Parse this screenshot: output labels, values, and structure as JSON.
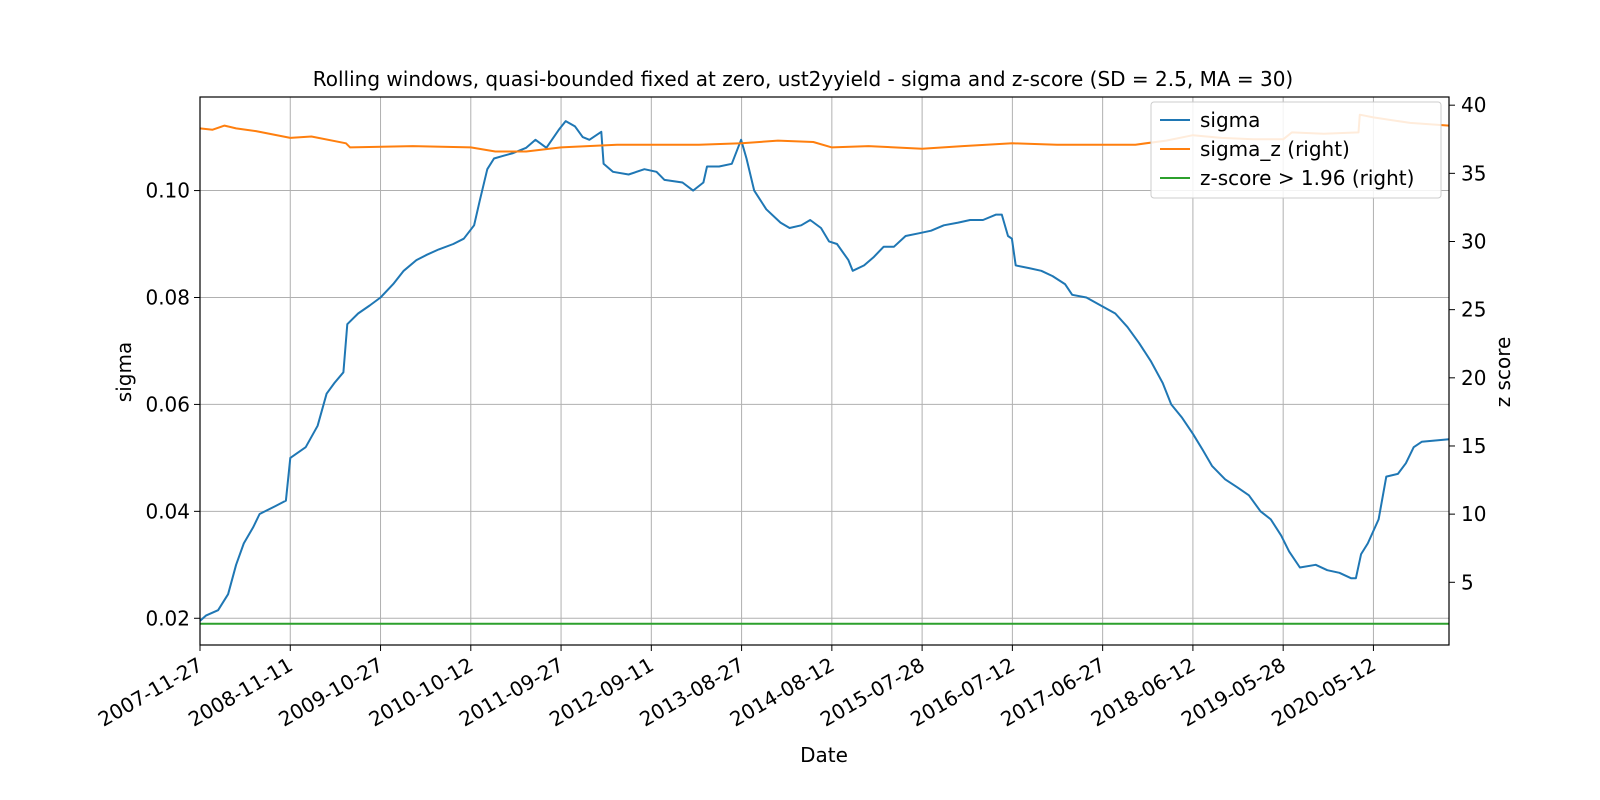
{
  "chart_data": {
    "type": "line",
    "title": "Rolling windows, quasi-bounded fixed at zero, ust2yyield - sigma and z-score (SD = 2.5, MA = 30)",
    "xlabel": "Date",
    "ylabel": "sigma",
    "ylabel_right": "z score",
    "x_range": [
      "2007-11-27",
      "2021-03-01"
    ],
    "ylim": [
      0.015,
      0.1175
    ],
    "ylim_right": [
      0.4,
      40.6
    ],
    "x_ticks": [
      "2007-11-27",
      "2008-11-11",
      "2009-10-27",
      "2010-10-12",
      "2011-09-27",
      "2012-09-11",
      "2013-08-27",
      "2014-08-12",
      "2015-07-28",
      "2016-07-12",
      "2017-06-27",
      "2018-06-12",
      "2019-05-28",
      "2020-05-12"
    ],
    "y_ticks": [
      "0.02",
      "0.04",
      "0.06",
      "0.08",
      "0.10"
    ],
    "y_ticks_right": [
      "5",
      "10",
      "15",
      "20",
      "25",
      "30",
      "35",
      "40"
    ],
    "grid": true,
    "legend_position": "top-right",
    "colors": {
      "sigma": "#1f77b4",
      "sigma_z": "#ff7f0e",
      "threshold": "#2ca02c"
    },
    "series": [
      {
        "name": "sigma",
        "axis": "left",
        "points": [
          [
            "2007-11-27",
            0.0195
          ],
          [
            "2007-12-20",
            0.0205
          ],
          [
            "2008-02-05",
            0.0215
          ],
          [
            "2008-03-15",
            0.0245
          ],
          [
            "2008-04-15",
            0.03
          ],
          [
            "2008-05-15",
            0.034
          ],
          [
            "2008-06-20",
            0.037
          ],
          [
            "2008-07-15",
            0.0395
          ],
          [
            "2008-09-15",
            0.041
          ],
          [
            "2008-10-25",
            0.042
          ],
          [
            "2008-11-11",
            0.05
          ],
          [
            "2009-01-10",
            0.052
          ],
          [
            "2009-02-25",
            0.056
          ],
          [
            "2009-04-01",
            0.062
          ],
          [
            "2009-05-01",
            0.064
          ],
          [
            "2009-06-05",
            0.066
          ],
          [
            "2009-06-20",
            0.075
          ],
          [
            "2009-08-01",
            0.077
          ],
          [
            "2009-09-15",
            0.0785
          ],
          [
            "2009-10-27",
            0.08
          ],
          [
            "2009-12-15",
            0.0825
          ],
          [
            "2010-01-25",
            0.085
          ],
          [
            "2010-03-15",
            0.087
          ],
          [
            "2010-04-25",
            0.088
          ],
          [
            "2010-06-10",
            0.089
          ],
          [
            "2010-08-05",
            0.09
          ],
          [
            "2010-09-15",
            0.091
          ],
          [
            "2010-10-25",
            0.0935
          ],
          [
            "2010-11-15",
            0.098
          ],
          [
            "2010-12-15",
            0.104
          ],
          [
            "2011-01-10",
            0.106
          ],
          [
            "2011-02-15",
            0.1065
          ],
          [
            "2011-03-25",
            0.107
          ],
          [
            "2011-05-15",
            0.108
          ],
          [
            "2011-06-20",
            0.1095
          ],
          [
            "2011-08-01",
            0.108
          ],
          [
            "2011-09-20",
            0.1115
          ],
          [
            "2011-10-15",
            0.113
          ],
          [
            "2011-11-20",
            0.112
          ],
          [
            "2011-12-20",
            0.11
          ],
          [
            "2012-01-15",
            0.1095
          ],
          [
            "2012-02-15",
            0.1105
          ],
          [
            "2012-03-01",
            0.111
          ],
          [
            "2012-03-10",
            0.105
          ],
          [
            "2012-04-15",
            0.1035
          ],
          [
            "2012-06-15",
            0.103
          ],
          [
            "2012-08-15",
            0.104
          ],
          [
            "2012-10-01",
            0.1035
          ],
          [
            "2012-11-01",
            0.102
          ],
          [
            "2013-01-10",
            0.1015
          ],
          [
            "2013-02-20",
            0.1
          ],
          [
            "2013-04-01",
            0.1015
          ],
          [
            "2013-04-15",
            0.1045
          ],
          [
            "2013-06-01",
            0.1045
          ],
          [
            "2013-07-20",
            0.105
          ],
          [
            "2013-08-25",
            0.1095
          ],
          [
            "2013-09-15",
            0.106
          ],
          [
            "2013-10-15",
            0.1
          ],
          [
            "2013-12-01",
            0.0965
          ],
          [
            "2014-01-25",
            0.094
          ],
          [
            "2014-03-01",
            0.093
          ],
          [
            "2014-04-15",
            0.0935
          ],
          [
            "2014-05-20",
            0.0945
          ],
          [
            "2014-07-01",
            0.093
          ],
          [
            "2014-08-01",
            0.0905
          ],
          [
            "2014-09-01",
            0.09
          ],
          [
            "2014-10-15",
            0.087
          ],
          [
            "2014-11-01",
            0.085
          ],
          [
            "2014-12-15",
            0.086
          ],
          [
            "2015-01-20",
            0.0875
          ],
          [
            "2015-03-01",
            0.0895
          ],
          [
            "2015-04-10",
            0.0895
          ],
          [
            "2015-05-25",
            0.0915
          ],
          [
            "2015-07-15",
            0.092
          ],
          [
            "2015-09-01",
            0.0925
          ],
          [
            "2015-10-20",
            0.0935
          ],
          [
            "2015-12-15",
            0.094
          ],
          [
            "2016-01-30",
            0.0945
          ],
          [
            "2016-03-20",
            0.0945
          ],
          [
            "2016-05-10",
            0.0955
          ],
          [
            "2016-06-01",
            0.0955
          ],
          [
            "2016-06-25",
            0.0915
          ],
          [
            "2016-07-10",
            0.091
          ],
          [
            "2016-07-25",
            0.086
          ],
          [
            "2016-09-15",
            0.0855
          ],
          [
            "2016-11-01",
            0.085
          ],
          [
            "2016-12-15",
            0.084
          ],
          [
            "2017-02-01",
            0.0825
          ],
          [
            "2017-03-01",
            0.0805
          ],
          [
            "2017-04-25",
            0.08
          ],
          [
            "2017-06-20",
            0.0785
          ],
          [
            "2017-08-15",
            0.077
          ],
          [
            "2017-10-01",
            0.0745
          ],
          [
            "2017-11-15",
            0.0715
          ],
          [
            "2018-01-01",
            0.068
          ],
          [
            "2018-02-15",
            0.064
          ],
          [
            "2018-03-20",
            0.06
          ],
          [
            "2018-05-01",
            0.0575
          ],
          [
            "2018-06-12",
            0.0545
          ],
          [
            "2018-07-20",
            0.0515
          ],
          [
            "2018-08-25",
            0.0485
          ],
          [
            "2018-10-15",
            0.046
          ],
          [
            "2018-12-01",
            0.0445
          ],
          [
            "2019-01-15",
            0.043
          ],
          [
            "2019-03-01",
            0.04
          ],
          [
            "2019-04-10",
            0.0385
          ],
          [
            "2019-05-20",
            0.0355
          ],
          [
            "2019-06-20",
            0.0325
          ],
          [
            "2019-08-01",
            0.0295
          ],
          [
            "2019-10-01",
            0.03
          ],
          [
            "2019-11-15",
            0.029
          ],
          [
            "2020-01-01",
            0.0285
          ],
          [
            "2020-02-15",
            0.0275
          ],
          [
            "2020-03-05",
            0.0275
          ],
          [
            "2020-03-25",
            0.032
          ],
          [
            "2020-04-20",
            0.034
          ],
          [
            "2020-06-01",
            0.0385
          ],
          [
            "2020-07-01",
            0.0465
          ],
          [
            "2020-08-15",
            0.047
          ],
          [
            "2020-09-15",
            0.049
          ],
          [
            "2020-10-15",
            0.052
          ],
          [
            "2020-11-15",
            0.053
          ],
          [
            "2021-03-01",
            0.0535
          ]
        ]
      },
      {
        "name": "sigma_z (right)",
        "axis": "right",
        "points": [
          [
            "2007-11-27",
            38.3
          ],
          [
            "2008-01-15",
            38.2
          ],
          [
            "2008-03-01",
            38.5
          ],
          [
            "2008-04-15",
            38.3
          ],
          [
            "2008-07-01",
            38.1
          ],
          [
            "2008-11-11",
            37.6
          ],
          [
            "2009-02-01",
            37.7
          ],
          [
            "2009-06-15",
            37.2
          ],
          [
            "2009-07-01",
            36.9
          ],
          [
            "2010-03-01",
            37.0
          ],
          [
            "2010-10-12",
            36.9
          ],
          [
            "2011-01-15",
            36.6
          ],
          [
            "2011-05-15",
            36.6
          ],
          [
            "2011-09-27",
            36.9
          ],
          [
            "2012-05-01",
            37.1
          ],
          [
            "2012-09-11",
            37.1
          ],
          [
            "2013-03-15",
            37.1
          ],
          [
            "2013-08-27",
            37.2
          ],
          [
            "2014-01-15",
            37.4
          ],
          [
            "2014-06-01",
            37.3
          ],
          [
            "2014-08-12",
            36.9
          ],
          [
            "2015-01-01",
            37.0
          ],
          [
            "2015-07-28",
            36.8
          ],
          [
            "2016-01-01",
            37.0
          ],
          [
            "2016-07-12",
            37.2
          ],
          [
            "2017-01-01",
            37.1
          ],
          [
            "2017-06-27",
            37.1
          ],
          [
            "2017-11-01",
            37.1
          ],
          [
            "2018-03-01",
            37.4
          ],
          [
            "2018-06-12",
            37.8
          ],
          [
            "2018-10-01",
            37.6
          ],
          [
            "2019-02-01",
            37.5
          ],
          [
            "2019-05-28",
            37.5
          ],
          [
            "2019-07-01",
            38.0
          ],
          [
            "2019-11-01",
            37.9
          ],
          [
            "2020-03-15",
            38.0
          ],
          [
            "2020-03-20",
            39.3
          ],
          [
            "2020-05-12",
            39.1
          ],
          [
            "2020-10-01",
            38.7
          ],
          [
            "2021-03-01",
            38.5
          ]
        ]
      },
      {
        "name": "z-score > 1.96 (right)",
        "axis": "right",
        "points": [
          [
            "2007-11-27",
            1.96
          ],
          [
            "2021-03-01",
            1.96
          ]
        ]
      }
    ]
  }
}
